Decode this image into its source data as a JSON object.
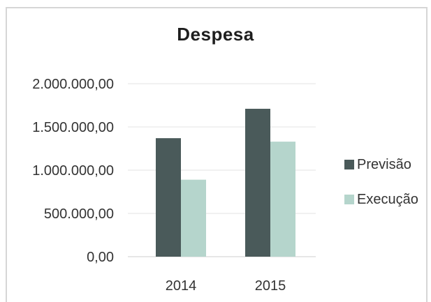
{
  "chart_data": {
    "type": "bar",
    "title": "Despesa",
    "categories": [
      "2014",
      "2015"
    ],
    "series": [
      {
        "name": "Previsão",
        "color": "#4a5a5a",
        "values": [
          1370000,
          1710000
        ]
      },
      {
        "name": "Execução",
        "color": "#b5d5cc",
        "values": [
          890000,
          1330000
        ]
      }
    ],
    "yticks": [
      0,
      500000,
      1000000,
      1500000,
      2000000
    ],
    "ytick_labels": [
      "0,00",
      "500.000,00",
      "1.000.000,00",
      "1.500.000,00",
      "2.000.000,00"
    ],
    "ylim": [
      0,
      2000000
    ],
    "xlabel": "",
    "ylabel": "",
    "grid": true,
    "legend_position": "right"
  }
}
